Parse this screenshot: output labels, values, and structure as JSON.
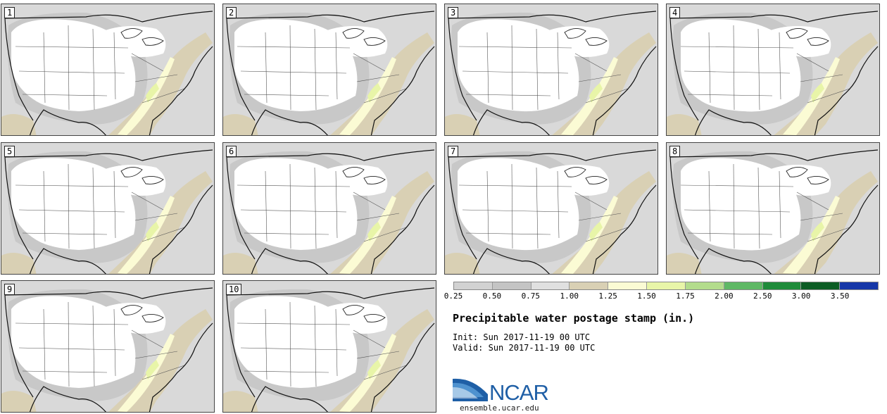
{
  "title": "Precipitable water postage stamp (in.)",
  "init_label": "Init:",
  "init_time": "Sun 2017-11-19 00 UTC",
  "valid_label": "Valid:",
  "valid_time": "Sun 2017-11-19 00 UTC",
  "logo": {
    "name": "NCAR",
    "url": "ensemble.ucar.edu"
  },
  "colorbar": {
    "ticks": [
      "0.25",
      "0.50",
      "0.75",
      "1.00",
      "1.25",
      "1.50",
      "1.75",
      "2.00",
      "2.50",
      "3.00",
      "3.50"
    ],
    "colors": [
      "#d2d2d2",
      "#c4c4c4",
      "#e0e0e0",
      "#d9d0b4",
      "#fbfbd4",
      "#e8f5a8",
      "#b3dc8c",
      "#5fb865",
      "#1f8b3a",
      "#0c5c24",
      "#1637a8"
    ]
  },
  "members": [
    "1",
    "2",
    "3",
    "4",
    "5",
    "6",
    "7",
    "8",
    "9",
    "10"
  ]
}
